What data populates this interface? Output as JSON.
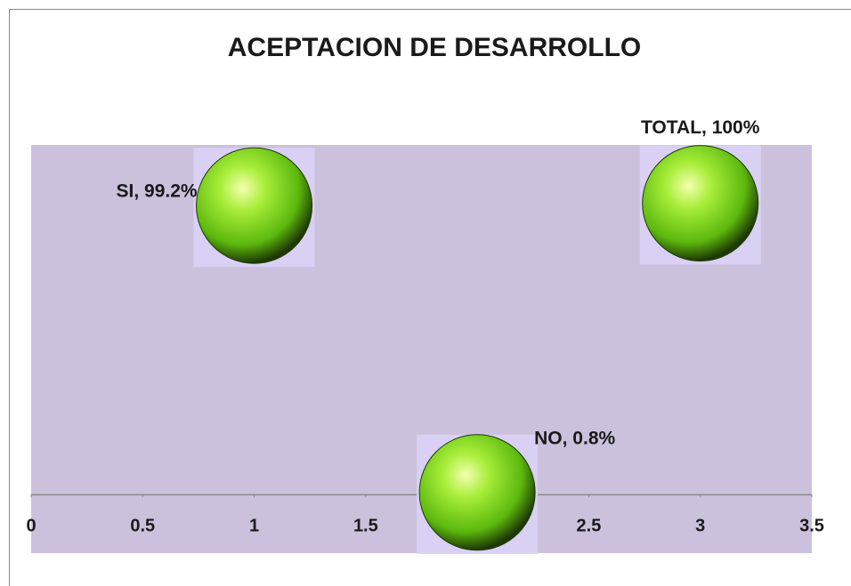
{
  "chart_data": {
    "type": "scatter",
    "title": "ACEPTACION DE DESARROLLO",
    "x": [
      1,
      2,
      3
    ],
    "values": [
      99.2,
      0.8,
      100
    ],
    "value_labels": [
      "SI, 99.2%",
      "NO, 0.8%",
      "TOTAL, 100%"
    ],
    "color": "#7fd81a",
    "xlim": [
      0,
      3.5
    ],
    "xticks": [
      0,
      0.5,
      1,
      1.5,
      2,
      2.5,
      3,
      3.5
    ],
    "ylim": [
      -20,
      120
    ],
    "grid": false
  }
}
